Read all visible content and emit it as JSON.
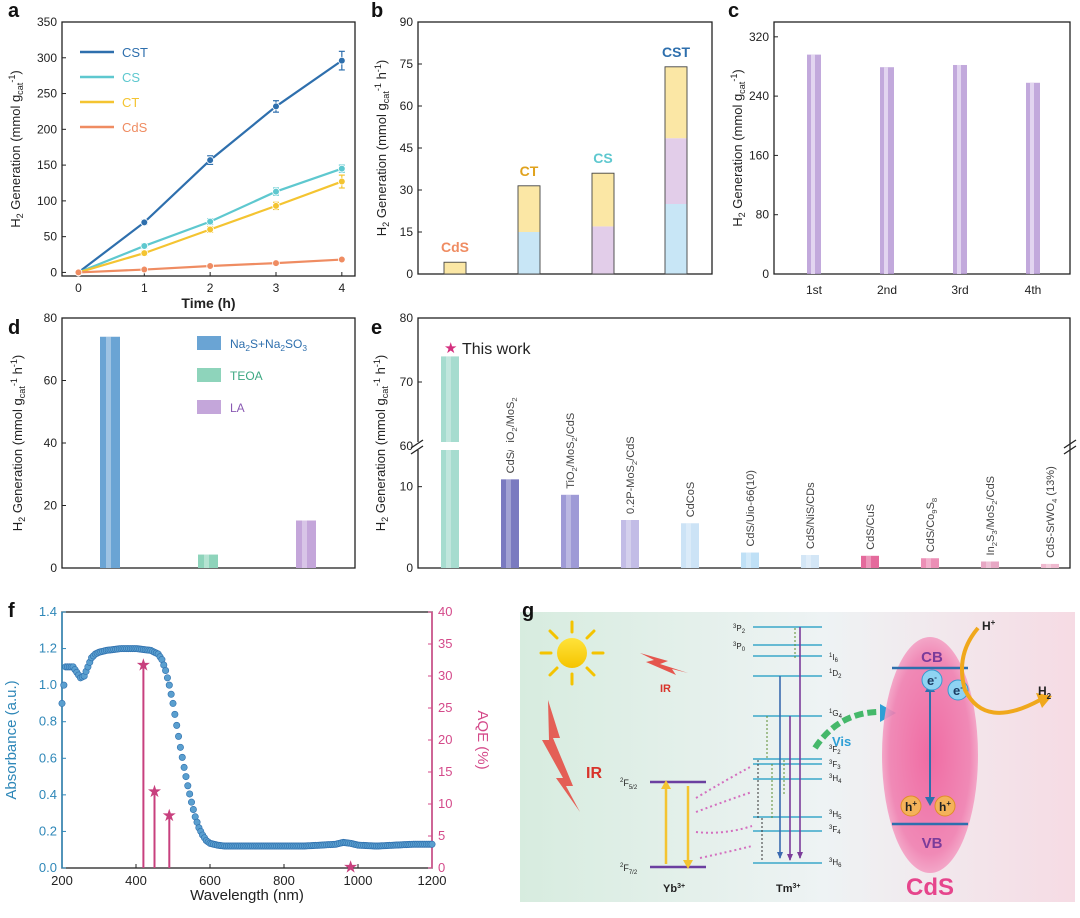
{
  "colors": {
    "CST": "#2e6fad",
    "CS": "#5ec8cf",
    "CT": "#f4c431",
    "CdS": "#ef8c62",
    "axis": "#222222",
    "blue_axis": "#2e87b8",
    "pink_axis": "#d44a8a",
    "purple": "#b79ad6"
  },
  "chart_data": [
    {
      "panel": "a",
      "type": "line",
      "xlabel": "Time (h)",
      "ylabel": "H2 Generation (mmol gcat-1)",
      "ylabel_parts": [
        "H",
        "2",
        " Generation (mmol g",
        "cat",
        "-1",
        ")"
      ],
      "xlim": [
        -0.25,
        4.2
      ],
      "ylim": [
        -5,
        350
      ],
      "xticks": [
        "0",
        "1",
        "2",
        "3",
        "4"
      ],
      "yticks": [
        "0",
        "50",
        "100",
        "150",
        "200",
        "250",
        "300",
        "350"
      ],
      "x": [
        0,
        1,
        2,
        3,
        4
      ],
      "series": [
        {
          "name": "CST",
          "values": [
            0,
            70,
            157,
            232,
            296
          ],
          "err": [
            0,
            3,
            6,
            8,
            13
          ]
        },
        {
          "name": "CS",
          "values": [
            0,
            37,
            71,
            113,
            145
          ],
          "err": [
            0,
            3,
            4,
            5,
            5
          ]
        },
        {
          "name": "CT",
          "values": [
            0,
            27,
            60,
            93,
            127
          ],
          "err": [
            0,
            3,
            4,
            5,
            9
          ]
        },
        {
          "name": "CdS",
          "values": [
            0,
            4,
            9,
            13,
            18
          ],
          "err": [
            0,
            1,
            1,
            1,
            2
          ]
        }
      ]
    },
    {
      "panel": "b",
      "type": "stacked-bar",
      "ylabel": "H2 Generation (mmol gcat-1 h-1)",
      "ylabel_parts": [
        "H",
        "2",
        " Generation (mmol g",
        "cat",
        "-1",
        " h",
        "-1",
        ")"
      ],
      "ylim": [
        0,
        90
      ],
      "yticks": [
        "0",
        "15",
        "30",
        "45",
        "60",
        "75",
        "90"
      ],
      "categories": [
        "CdS",
        "CT",
        "CS",
        "CST"
      ],
      "values": [
        4.2,
        31.5,
        36,
        74
      ],
      "segments": [
        [
          {
            "value": 4.2,
            "color": "#fbe7a5"
          }
        ],
        [
          {
            "value": 15,
            "color": "#c8e6f6"
          },
          {
            "value": 16.5,
            "color": "#fbe7a5"
          }
        ],
        [
          {
            "value": 17,
            "color": "#e2cde9"
          },
          {
            "value": 19,
            "color": "#fbe7a5"
          }
        ],
        [
          {
            "value": 25,
            "color": "#c8e6f6"
          },
          {
            "value": 23.5,
            "color": "#e2cde9"
          },
          {
            "value": 25.5,
            "color": "#fbe7a5"
          }
        ]
      ],
      "label_colors": [
        "#ef8c62",
        "#e0a21d",
        "#5ec8cf",
        "#2e6fad"
      ]
    },
    {
      "panel": "c",
      "type": "bar",
      "ylabel": "H2 Generation (mmol gcat-1)",
      "ylabel_parts": [
        "H",
        "2",
        " Generation (mmol g",
        "cat",
        "-1",
        ")"
      ],
      "ylim": [
        0,
        340
      ],
      "yticks": [
        "0",
        "80",
        "160",
        "240",
        "320"
      ],
      "categories": [
        "1st",
        "2nd",
        "3rd",
        "4th"
      ],
      "values": [
        296,
        279,
        282,
        258
      ]
    },
    {
      "panel": "d",
      "type": "bar",
      "ylabel": "H2 Generation (mmol gcat-1 h-1)",
      "ylabel_parts": [
        "H",
        "2",
        " Generation (mmol g",
        "cat",
        "-1",
        " h",
        "-1",
        ")"
      ],
      "ylim": [
        0,
        80
      ],
      "yticks": [
        "0",
        "20",
        "40",
        "60",
        "80"
      ],
      "categories": [
        "Na2S+Na2SO3",
        "TEOA",
        "LA"
      ],
      "values": [
        74,
        4.3,
        15.2
      ],
      "colors": [
        "#6aa4d4",
        "#8ed4bb",
        "#c4a6da"
      ],
      "legend": [
        {
          "parts": [
            "Na",
            "2",
            "S+Na",
            "2",
            "SO",
            "3"
          ]
        },
        {
          "parts": [
            "TEOA"
          ]
        },
        {
          "parts": [
            "LA"
          ]
        }
      ]
    },
    {
      "panel": "e",
      "type": "bar",
      "ylabel": "H2 Generation (mmol gcat-1 h-1)",
      "ylabel_parts": [
        "H",
        "2",
        " Generation (mmol g",
        "cat",
        "-1",
        " h",
        "-1",
        ")"
      ],
      "axis_break": [
        15,
        60
      ],
      "yticks_lower": [
        "0",
        "10"
      ],
      "yticks_upper": [
        "60",
        "70",
        "80"
      ],
      "highlight": "This work",
      "bars": [
        {
          "value": 74,
          "color": "#a6dccf",
          "label_parts": []
        },
        {
          "value": 10.9,
          "color": "#7a7ac0",
          "label_parts": [
            "CdS/TiO",
            "2",
            "/MoS",
            "2"
          ]
        },
        {
          "value": 9,
          "color": "#9e9ad6",
          "label_parts": [
            "TiO",
            "2",
            "/MoS",
            "2",
            "/CdS"
          ]
        },
        {
          "value": 5.9,
          "color": "#c2bce6",
          "label_parts": [
            "0.2P-MoS",
            "2",
            "/CdS"
          ]
        },
        {
          "value": 5.5,
          "color": "#cce3f6",
          "label_parts": [
            "CdCoS"
          ]
        },
        {
          "value": 1.9,
          "color": "#bfe0f6",
          "label_parts": [
            "CdS/Uio-66(10)"
          ]
        },
        {
          "value": 1.6,
          "color": "#d3e6f6",
          "label_parts": [
            "CdS/NiS/CDs"
          ]
        },
        {
          "value": 1.5,
          "color": "#e46a9c",
          "label_parts": [
            "CdS/CuS"
          ]
        },
        {
          "value": 1.2,
          "color": "#ec8fb6",
          "label_parts": [
            "CdS/Co",
            "9",
            "S",
            "8"
          ]
        },
        {
          "value": 0.8,
          "color": "#e7a7c4",
          "label_parts": [
            "In",
            "2",
            "S",
            "3",
            "/MoS",
            "2",
            "/CdS"
          ]
        },
        {
          "value": 0.5,
          "color": "#efb9cf",
          "label_parts": [
            "CdS-SrWO",
            "4",
            " (13%)"
          ]
        }
      ]
    },
    {
      "panel": "f",
      "type": "scatter+stem",
      "xlabel": "Wavelength (nm)",
      "ylabel_left": "Absorbance (a.u.)",
      "ylabel_right": "AQE (%)",
      "xlim": [
        200,
        1200
      ],
      "ylim_left": [
        0,
        1.4
      ],
      "ylim_right": [
        0,
        40
      ],
      "xticks": [
        "200",
        "400",
        "600",
        "800",
        "1000",
        "1200"
      ],
      "yticks_left": [
        "0.0",
        "0.2",
        "0.4",
        "0.6",
        "0.8",
        "1.0",
        "1.2",
        "1.4"
      ],
      "yticks_right": [
        "0",
        "5",
        "10",
        "15",
        "20",
        "25",
        "30",
        "35",
        "40"
      ],
      "absorbance_x": [
        200,
        210,
        220,
        230,
        240,
        250,
        260,
        270,
        280,
        290,
        300,
        320,
        340,
        360,
        380,
        400,
        420,
        440,
        460,
        470,
        480,
        490,
        500,
        510,
        520,
        530,
        540,
        550,
        560,
        570,
        580,
        590,
        600,
        620,
        640,
        660,
        700,
        750,
        800,
        850,
        900,
        940,
        960,
        980,
        1000,
        1050,
        1100,
        1150,
        1200
      ],
      "absorbance_y": [
        0.9,
        1.1,
        1.1,
        1.1,
        1.07,
        1.04,
        1.05,
        1.1,
        1.15,
        1.17,
        1.18,
        1.19,
        1.195,
        1.2,
        1.2,
        1.2,
        1.195,
        1.19,
        1.17,
        1.14,
        1.08,
        1.0,
        0.9,
        0.78,
        0.66,
        0.55,
        0.45,
        0.36,
        0.28,
        0.22,
        0.18,
        0.15,
        0.135,
        0.125,
        0.12,
        0.12,
        0.12,
        0.12,
        0.12,
        0.12,
        0.125,
        0.13,
        0.14,
        0.135,
        0.125,
        0.12,
        0.125,
        0.13,
        0.13
      ],
      "aqe_x": [
        420,
        450,
        490,
        980
      ],
      "aqe_y": [
        31.8,
        12,
        8.3,
        0.2
      ]
    }
  ],
  "panel_g": {
    "labels": {
      "ir_small": "IR",
      "ir_big": "IR",
      "vis": "Vis",
      "yb": "Yb",
      "yb_sup": "3+",
      "tm": "Tm",
      "tm_sup": "3+",
      "cb": "CB",
      "vb": "VB",
      "cds": "CdS",
      "h_plus": "H",
      "h_plus_sup": "+",
      "h2": "H",
      "h2_sub": "2",
      "electron": "e",
      "electron_sup": "-",
      "hole": "h",
      "hole_sup": "+",
      "f52": "2F5/2",
      "f72": "2F7/2"
    },
    "tm_levels": [
      "3P2",
      "3P0",
      "1I6",
      "1D2",
      "1G4",
      "3F2",
      "3F3",
      "3H4",
      "3H5",
      "3F4",
      "3H6"
    ]
  },
  "panel_letters": [
    "a",
    "b",
    "c",
    "d",
    "e",
    "f",
    "g"
  ]
}
